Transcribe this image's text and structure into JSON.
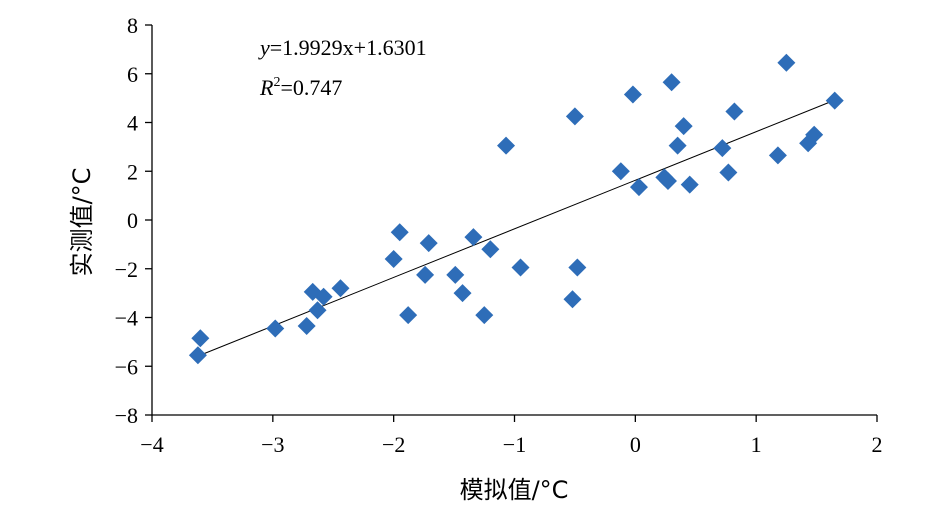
{
  "chart_data": {
    "type": "scatter",
    "xlabel": "模拟值/°C",
    "ylabel": "实测值/°C",
    "xlim": [
      -4,
      2
    ],
    "ylim": [
      -8,
      8
    ],
    "xticks": [
      -4,
      -3,
      -2,
      -1,
      0,
      1,
      2
    ],
    "yticks": [
      -8,
      -6,
      -4,
      -2,
      0,
      2,
      4,
      6,
      8
    ],
    "xtick_labels": [
      "−4",
      "−3",
      "−2",
      "−1",
      "0",
      "1",
      "2"
    ],
    "ytick_labels": [
      "−8",
      "−6",
      "−4",
      "−2",
      "0",
      "2",
      "4",
      "6",
      "8"
    ],
    "grid": false,
    "marker": "diamond",
    "marker_color": "#2E6DB8",
    "trendline": {
      "slope": 1.9929,
      "intercept": 1.6301,
      "x_range": [
        -3.6,
        1.65
      ]
    },
    "annotations": {
      "equation_var": "y",
      "equation_rest": "=1.9929x+1.6301",
      "r2_var": "R",
      "r2_sup": "2",
      "r2_rest": "=0.747"
    },
    "points": [
      {
        "x": -3.62,
        "y": -5.55
      },
      {
        "x": -3.6,
        "y": -4.85
      },
      {
        "x": -2.98,
        "y": -4.45
      },
      {
        "x": -2.72,
        "y": -4.35
      },
      {
        "x": -2.67,
        "y": -2.95
      },
      {
        "x": -2.63,
        "y": -3.7
      },
      {
        "x": -2.58,
        "y": -3.15
      },
      {
        "x": -2.44,
        "y": -2.8
      },
      {
        "x": -2.0,
        "y": -1.6
      },
      {
        "x": -1.95,
        "y": -0.5
      },
      {
        "x": -1.88,
        "y": -3.9
      },
      {
        "x": -1.74,
        "y": -2.25
      },
      {
        "x": -1.71,
        "y": -0.95
      },
      {
        "x": -1.49,
        "y": -2.25
      },
      {
        "x": -1.43,
        "y": -3.0
      },
      {
        "x": -1.34,
        "y": -0.7
      },
      {
        "x": -1.25,
        "y": -3.9
      },
      {
        "x": -1.2,
        "y": -1.2
      },
      {
        "x": -1.07,
        "y": 3.05
      },
      {
        "x": -0.95,
        "y": -1.95
      },
      {
        "x": -0.52,
        "y": -3.25
      },
      {
        "x": -0.5,
        "y": 4.25
      },
      {
        "x": -0.48,
        "y": -1.95
      },
      {
        "x": -0.12,
        "y": 2.0
      },
      {
        "x": -0.02,
        "y": 5.15
      },
      {
        "x": 0.03,
        "y": 1.35
      },
      {
        "x": 0.24,
        "y": 1.75
      },
      {
        "x": 0.27,
        "y": 1.6
      },
      {
        "x": 0.3,
        "y": 5.65
      },
      {
        "x": 0.35,
        "y": 3.05
      },
      {
        "x": 0.4,
        "y": 3.85
      },
      {
        "x": 0.45,
        "y": 1.45
      },
      {
        "x": 0.72,
        "y": 2.95
      },
      {
        "x": 0.77,
        "y": 1.95
      },
      {
        "x": 0.82,
        "y": 4.45
      },
      {
        "x": 1.18,
        "y": 2.65
      },
      {
        "x": 1.25,
        "y": 6.45
      },
      {
        "x": 1.43,
        "y": 3.15
      },
      {
        "x": 1.48,
        "y": 3.5
      },
      {
        "x": 1.65,
        "y": 4.9
      }
    ]
  }
}
